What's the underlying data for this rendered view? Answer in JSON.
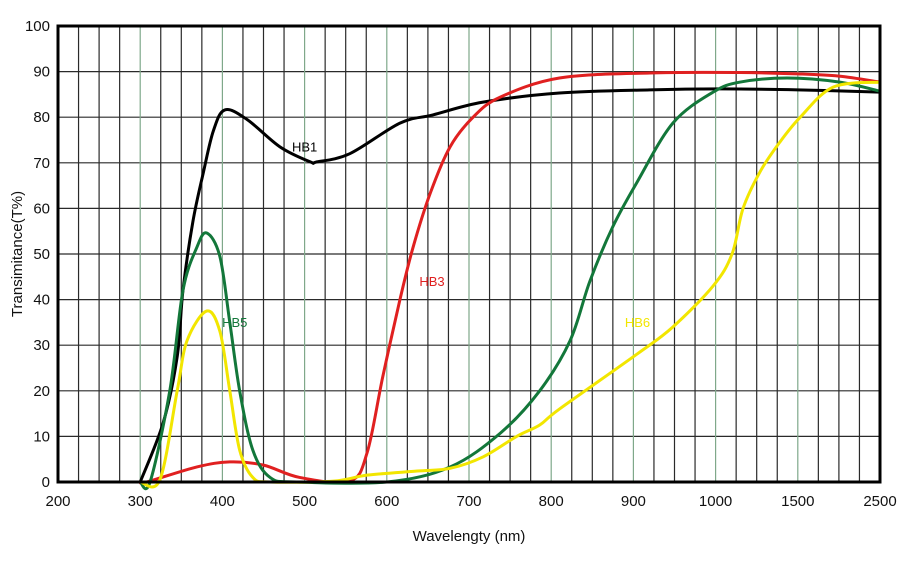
{
  "chart_data": {
    "type": "line",
    "title": "",
    "xlabel": "Wavelengty (nm)",
    "ylabel": "Transimitance(T%)",
    "x_tick_labels": [
      "200",
      "300",
      "400",
      "500",
      "600",
      "700",
      "800",
      "900",
      "1000",
      "1500",
      "2500"
    ],
    "x_ticks": [
      200,
      300,
      400,
      500,
      600,
      700,
      800,
      900,
      1000,
      1500,
      2500
    ],
    "x_scale": "piecewise (equal spacing between tick labels)",
    "y_tick_labels": [
      "0",
      "10",
      "20",
      "30",
      "40",
      "50",
      "60",
      "70",
      "80",
      "90",
      "100"
    ],
    "ylim": [
      0,
      100
    ],
    "xlim": [
      200,
      2500
    ],
    "grid": true,
    "series": [
      {
        "name": "HB1",
        "color": "#000000",
        "x": [
          300,
          328,
          345,
          352,
          364,
          377,
          389,
          403,
          430,
          470,
          507,
          515,
          555,
          616,
          656,
          717,
          810,
          920,
          1025,
          1500,
          2500
        ],
        "y": [
          0,
          13,
          27.5,
          42,
          57,
          68,
          77,
          81.6,
          79.5,
          73.5,
          70.2,
          70.2,
          72,
          78.7,
          80.5,
          83.3,
          85.3,
          86,
          86.2,
          86,
          85.5
        ]
      },
      {
        "name": "HB3",
        "color": "#e02020",
        "x": [
          300,
          308,
          369,
          409,
          450,
          494,
          555,
          576,
          595,
          616,
          632,
          653,
          677,
          705,
          738,
          810,
          920,
          1150,
          1500,
          2000,
          2500
        ],
        "y": [
          0,
          0,
          3.3,
          4.4,
          3.7,
          1,
          0.2,
          6.4,
          23,
          40,
          51.5,
          63.4,
          73.5,
          80,
          84.4,
          88.6,
          89.7,
          89.8,
          89.5,
          89,
          87.7
        ]
      },
      {
        "name": "HB5",
        "color": "#13773a",
        "x": [
          300,
          312,
          336,
          352,
          369,
          381,
          397,
          409,
          421,
          437,
          458,
          490,
          600,
          677,
          738,
          786,
          823,
          847,
          875,
          904,
          948,
          997,
          1150,
          1435,
          2010,
          2500
        ],
        "y": [
          0,
          0,
          20,
          42,
          51.5,
          54.6,
          49.4,
          35,
          20,
          7,
          1,
          0,
          0,
          3.3,
          10.7,
          20,
          31,
          44,
          56,
          65.6,
          78.7,
          85.5,
          87.7,
          88.6,
          87.7,
          85.7
        ]
      },
      {
        "name": "HB6",
        "color": "#f2e600",
        "x": [
          300,
          324,
          345,
          357,
          381,
          397,
          409,
          421,
          437,
          458,
          535,
          576,
          637,
          677,
          717,
          758,
          786,
          810,
          904,
          948,
          997,
          1100,
          1167,
          1270,
          1390,
          1530,
          1930,
          2500
        ],
        "y": [
          0,
          0.5,
          20,
          31,
          37.5,
          33,
          20,
          7,
          1,
          0,
          0.2,
          1.5,
          2.4,
          3,
          5.5,
          10,
          12.5,
          16,
          28,
          34,
          43,
          50,
          60,
          68,
          74.5,
          80,
          86.6,
          87.7
        ]
      }
    ],
    "annotations": [
      {
        "text": "HB1",
        "series": "HB1",
        "at_x": 500,
        "at_y": 72.5
      },
      {
        "text": "HB5",
        "series": "HB5",
        "at_x": 415,
        "at_y": 34
      },
      {
        "text": "HB3",
        "series": "HB3",
        "at_x": 655,
        "at_y": 43
      },
      {
        "text": "HB6",
        "series": "HB6",
        "at_x": 905,
        "at_y": 34
      }
    ],
    "legend": "none (inline labels)"
  }
}
